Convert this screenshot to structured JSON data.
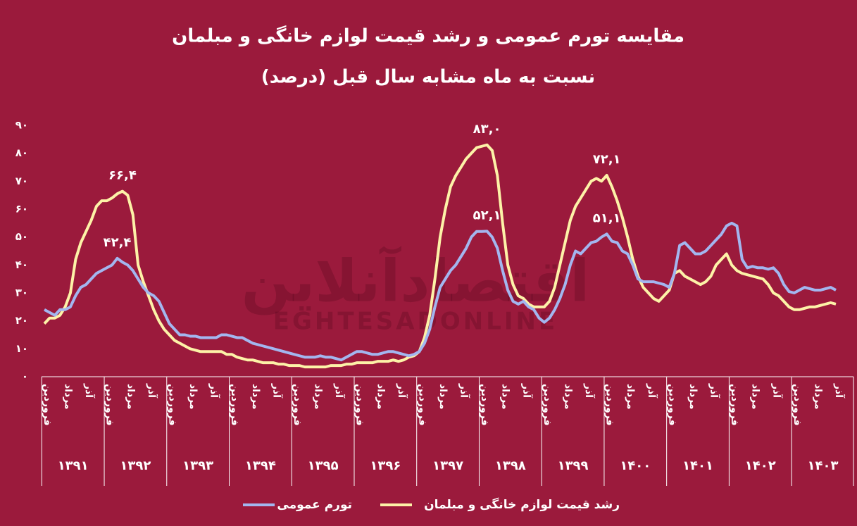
{
  "chart_data": {
    "type": "line",
    "title": "مقایسه تورم عمومی و رشد قیمت لوازم خانگی و مبلمان",
    "subtitle": "نسبت به ماه مشابه سال قبل (درصد)",
    "watermark": [
      "اقتصادآنلاین",
      "EGHTESADONLINE"
    ],
    "years": [
      "۱۳۹۱",
      "۱۳۹۲",
      "۱۳۹۳",
      "۱۳۹۴",
      "۱۳۹۵",
      "۱۳۹۶",
      "۱۳۹۷",
      "۱۳۹۸",
      "۱۳۹۹",
      "۱۴۰۰",
      "۱۴۰۱",
      "۱۴۰۲",
      "۱۴۰۳"
    ],
    "categories": [
      "فروردین",
      null,
      null,
      null,
      "مرداد",
      null,
      null,
      null,
      "آذر",
      null,
      null,
      null,
      "فروردین",
      null,
      null,
      null,
      "مرداد",
      null,
      null,
      null,
      "آذر",
      null,
      null,
      null,
      "فروردین",
      null,
      null,
      null,
      "مرداد",
      null,
      null,
      null,
      "آذر",
      null,
      null,
      null,
      "فروردین",
      null,
      null,
      null,
      "مرداد",
      null,
      null,
      null,
      "آذر",
      null,
      null,
      null,
      "فروردین",
      null,
      null,
      null,
      "مرداد",
      null,
      null,
      null,
      "آذر",
      null,
      null,
      null,
      "فروردین",
      null,
      null,
      null,
      "مرداد",
      null,
      null,
      null,
      "آذر",
      null,
      null,
      null,
      "فروردین",
      null,
      null,
      null,
      "مرداد",
      null,
      null,
      null,
      "آذر",
      null,
      null,
      null,
      "فروردین",
      null,
      null,
      null,
      "مرداد",
      null,
      null,
      null,
      "آذر",
      null,
      null,
      null,
      "فروردین",
      null,
      null,
      null,
      "مرداد",
      null,
      null,
      null,
      "آذر",
      null,
      null,
      null,
      "فروردین",
      null,
      null,
      null,
      "مرداد",
      null,
      null,
      null,
      "آذر",
      null,
      null,
      null,
      "فروردین",
      null,
      null,
      null,
      "مرداد",
      null,
      null,
      null,
      "آذر",
      null,
      null,
      null,
      "فروردین",
      null,
      null,
      null,
      "مرداد",
      null,
      null,
      null,
      "آذر",
      null,
      null,
      null,
      "فروردین",
      null,
      null,
      null,
      "مرداد",
      null,
      null,
      null,
      "آذر"
    ],
    "series": [
      {
        "name": "تورم عمومی",
        "color": "#a3b6ef",
        "values": [
          24,
          23,
          22,
          24,
          24,
          25,
          29,
          32,
          33,
          35,
          37,
          38,
          39,
          40,
          42.4,
          41,
          40,
          38,
          35,
          32,
          30,
          29,
          27,
          23,
          19,
          17,
          15,
          15,
          14.5,
          14.5,
          14,
          14,
          14,
          14,
          15,
          15,
          14.5,
          14,
          14,
          13,
          12,
          11.5,
          11,
          10.5,
          10,
          9.5,
          9,
          8.5,
          8,
          7.5,
          7,
          7,
          7,
          7.5,
          7,
          7,
          6.5,
          6,
          7,
          8,
          9,
          9,
          8.5,
          8,
          8,
          8.5,
          9,
          9,
          8.5,
          8,
          7.5,
          8,
          9,
          12,
          17,
          25,
          32,
          35,
          38,
          40,
          43,
          46,
          50,
          52,
          52,
          52.1,
          50,
          46,
          38,
          31,
          27,
          26,
          27,
          25,
          24,
          21,
          19.5,
          21,
          24,
          28,
          33,
          40,
          45,
          44,
          46,
          48,
          48.5,
          50,
          51.1,
          48.5,
          48,
          45,
          44,
          40,
          35,
          34,
          34,
          34,
          33.5,
          33,
          32,
          37,
          47,
          48,
          46,
          44,
          44,
          45,
          47,
          49,
          51,
          54,
          55,
          54,
          42,
          39,
          39.5,
          39,
          39,
          38.5,
          39,
          37,
          33,
          30.5,
          30,
          31,
          32,
          31.5,
          31,
          31,
          31.5,
          32,
          31
        ],
        "value_labels": [
          null,
          null,
          null,
          null,
          null,
          null,
          null,
          null,
          null,
          null,
          null,
          null,
          null,
          null,
          "۴۲,۴",
          null,
          null,
          null,
          null,
          null,
          null,
          null,
          null,
          null,
          null,
          null,
          null,
          null,
          null,
          null,
          null,
          null,
          null,
          null,
          null,
          null,
          null,
          null,
          null,
          null,
          null,
          null,
          null,
          null,
          null,
          null,
          null,
          null,
          null,
          null,
          null,
          null,
          null,
          null,
          null,
          null,
          null,
          null,
          null,
          null,
          null,
          null,
          null,
          null,
          null,
          null,
          null,
          null,
          null,
          null,
          null,
          null,
          null,
          null,
          null,
          null,
          null,
          null,
          null,
          null,
          null,
          null,
          null,
          null,
          null,
          "۵۲,۱",
          null,
          null,
          null,
          null,
          null,
          null,
          null,
          null,
          null,
          null,
          null,
          null,
          null,
          null,
          null,
          null,
          null,
          null,
          null,
          null,
          null,
          null,
          "۵۱,۱",
          null,
          null,
          null,
          null,
          null,
          null,
          null,
          null,
          null,
          null,
          null,
          null,
          null,
          null,
          null,
          null,
          null,
          null,
          null,
          null,
          null,
          null,
          null,
          null,
          null,
          null,
          null,
          null,
          null,
          null,
          null,
          null,
          null,
          null,
          null,
          null,
          null,
          null,
          null,
          null,
          null,
          null,
          null,
          null
        ]
      },
      {
        "name": "رشد قیمت لوازم خانگی و مبلمان",
        "color": "#fdf2a8",
        "values": [
          19,
          21,
          21,
          22,
          25,
          30,
          42,
          48,
          52,
          56,
          61,
          63,
          63,
          64,
          65.5,
          66.4,
          65,
          58,
          40,
          34,
          29,
          24,
          20,
          17,
          15,
          13,
          12,
          11,
          10,
          9.5,
          9,
          9,
          9,
          9,
          9,
          8,
          8,
          7,
          6.5,
          6,
          6,
          5.5,
          5,
          5,
          5,
          4.5,
          4.5,
          4,
          4,
          4,
          3.5,
          3.5,
          3.5,
          3.5,
          3.5,
          4,
          4,
          4,
          4.5,
          4.5,
          5,
          5,
          5,
          5,
          5.5,
          5.5,
          5.5,
          6,
          5.5,
          6,
          7,
          7.5,
          9,
          14,
          22,
          35,
          50,
          60,
          68,
          72,
          75,
          78,
          80,
          82,
          82.5,
          83,
          81,
          72,
          55,
          40,
          33,
          29,
          28,
          26,
          25,
          25,
          25,
          27,
          32,
          40,
          48,
          56,
          61,
          64,
          67,
          70,
          71,
          70,
          72.1,
          68,
          63,
          57,
          50,
          42,
          36,
          32,
          30,
          28,
          27,
          29,
          31,
          37,
          38,
          36,
          35,
          34,
          33,
          34,
          36,
          40,
          42,
          44,
          40,
          38,
          37,
          36.5,
          36,
          35.5,
          35,
          33,
          30,
          29,
          27,
          25,
          24,
          24,
          24.5,
          25,
          25,
          25.5,
          26,
          26.5,
          26
        ],
        "value_labels": [
          null,
          null,
          null,
          null,
          null,
          null,
          null,
          null,
          null,
          null,
          null,
          null,
          null,
          null,
          null,
          "۶۶,۴",
          null,
          null,
          null,
          null,
          null,
          null,
          null,
          null,
          null,
          null,
          null,
          null,
          null,
          null,
          null,
          null,
          null,
          null,
          null,
          null,
          null,
          null,
          null,
          null,
          null,
          null,
          null,
          null,
          null,
          null,
          null,
          null,
          null,
          null,
          null,
          null,
          null,
          null,
          null,
          null,
          null,
          null,
          null,
          null,
          null,
          null,
          null,
          null,
          null,
          null,
          null,
          null,
          null,
          null,
          null,
          null,
          null,
          null,
          null,
          null,
          null,
          null,
          null,
          null,
          null,
          null,
          null,
          null,
          null,
          "۸۳,۰",
          null,
          null,
          null,
          null,
          null,
          null,
          null,
          null,
          null,
          null,
          null,
          null,
          null,
          null,
          null,
          null,
          null,
          null,
          null,
          null,
          null,
          null,
          "۷۲,۱",
          null,
          null,
          null,
          null,
          null,
          null,
          null,
          null,
          null,
          null,
          null,
          null,
          null,
          null,
          null,
          null,
          null,
          null,
          null,
          null,
          null,
          null,
          null,
          null,
          null,
          null,
          null,
          null,
          null,
          null,
          null,
          null,
          null,
          null,
          null,
          null,
          null,
          null,
          null,
          null,
          null,
          null,
          null,
          null
        ]
      }
    ],
    "ylim": [
      0,
      90
    ],
    "yticks": [
      {
        "value": 0,
        "label": "۰"
      },
      {
        "value": 10,
        "label": "۱۰"
      },
      {
        "value": 20,
        "label": "۲۰"
      },
      {
        "value": 30,
        "label": "۳۰"
      },
      {
        "value": 40,
        "label": "۴۰"
      },
      {
        "value": 50,
        "label": "۵۰"
      },
      {
        "value": 60,
        "label": "۶۰"
      },
      {
        "value": 70,
        "label": "۷۰"
      },
      {
        "value": 80,
        "label": "۸۰"
      },
      {
        "value": 90,
        "label": "۹۰"
      }
    ],
    "grid": false,
    "legend": "bottom"
  }
}
